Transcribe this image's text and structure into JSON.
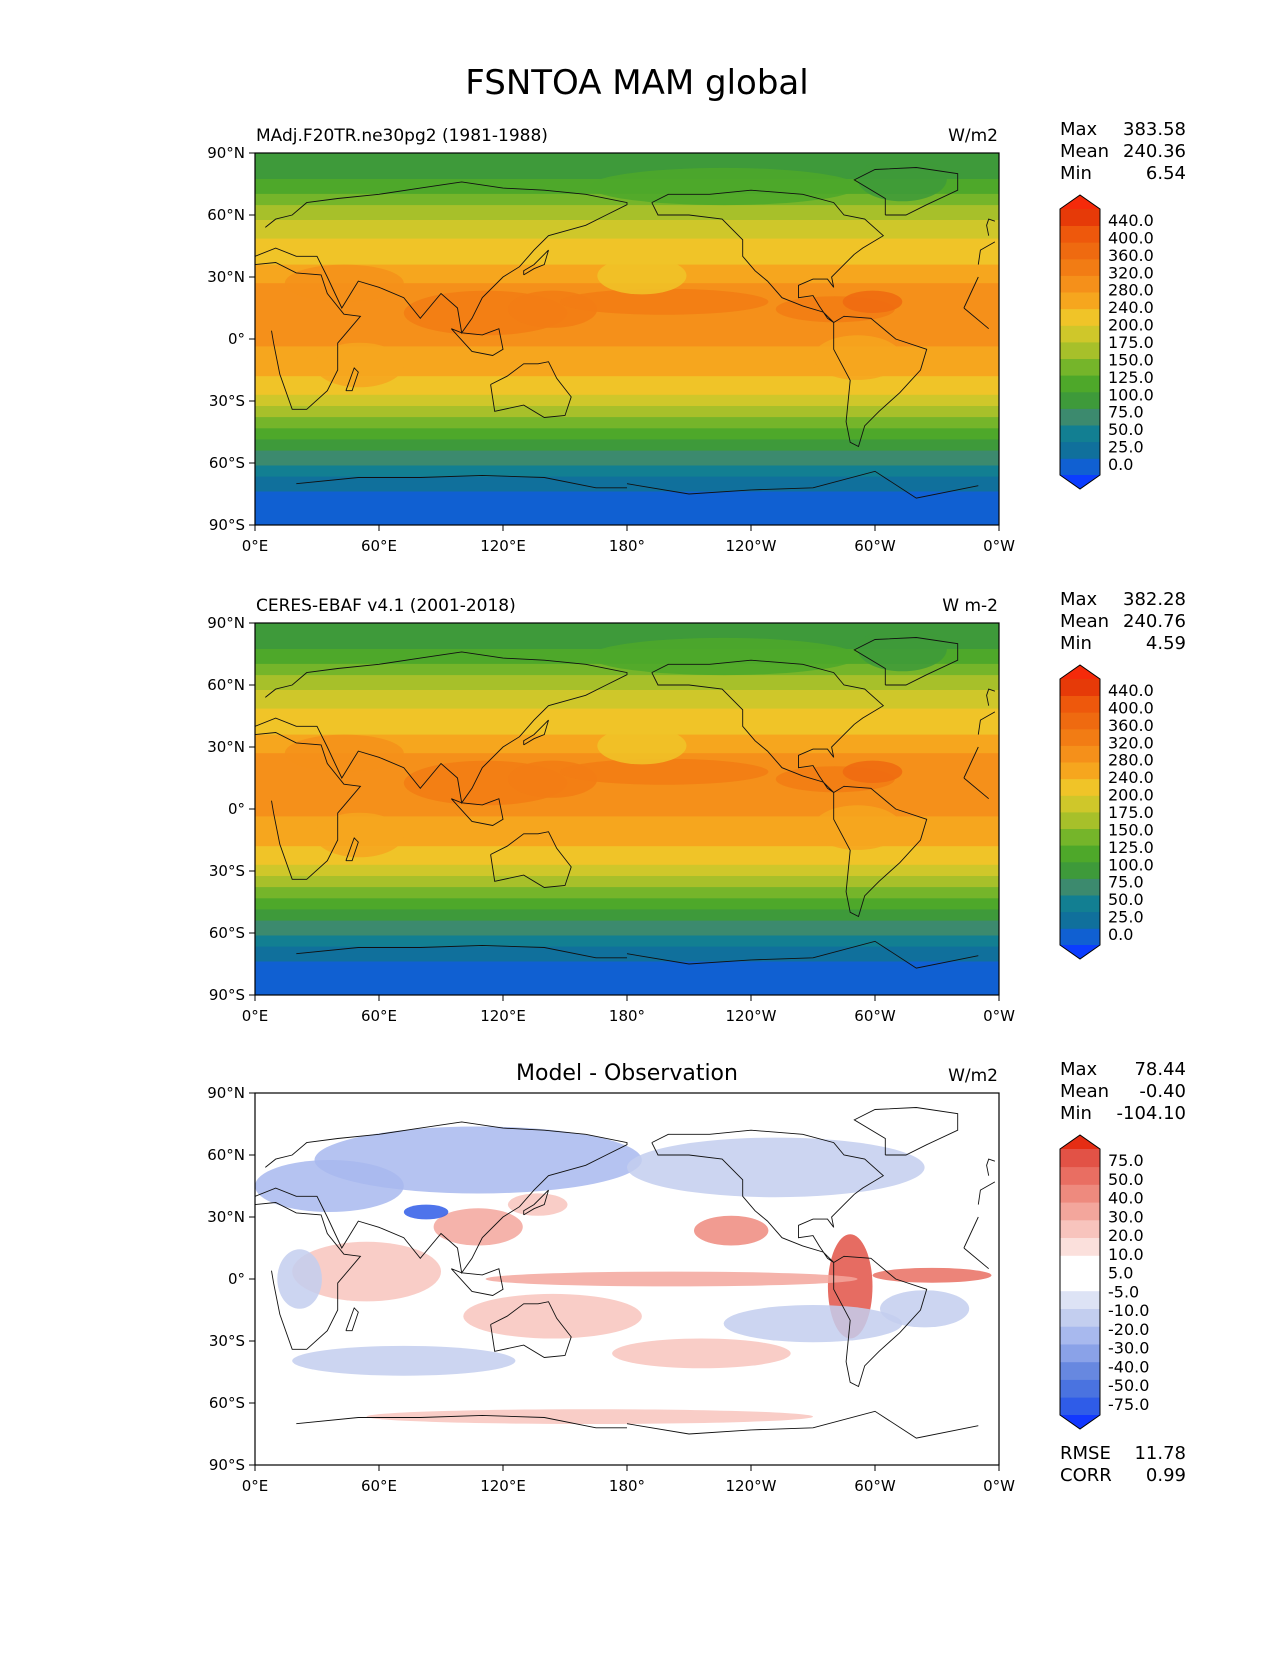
{
  "title": "FSNTOA MAM global",
  "x_ticks": [
    "0°E",
    "60°E",
    "120°E",
    "180°",
    "120°W",
    "60°W",
    "0°W"
  ],
  "y_ticks": [
    "90°N",
    "60°N",
    "30°N",
    "0°",
    "30°S",
    "60°S",
    "90°S"
  ],
  "colors": {
    "abs_levels": [
      "#0b3dff",
      "#1060d2",
      "#10709c",
      "#127f92",
      "#3c8a6e",
      "#3e9a3a",
      "#4ea82a",
      "#75b52a",
      "#a7c02a",
      "#cfc72a",
      "#f0c428",
      "#f6a61e",
      "#f5901a",
      "#f27c14",
      "#ef6a10",
      "#ee580c",
      "#e63a08",
      "#f52a0a"
    ],
    "diff_levels": [
      "#1238ff",
      "#2f5ce8",
      "#4a73e0",
      "#6788e0",
      "#8aa2e8",
      "#a8b9ee",
      "#c3ceef",
      "#dde3f5",
      "#ffffff",
      "#ffffff",
      "#fbe0dc",
      "#f8c4bd",
      "#f3a69c",
      "#ee8a7e",
      "#e96e62",
      "#e25246",
      "#e52d14"
    ]
  },
  "panels": [
    {
      "id": "model",
      "left_title": "MAdj.F20TR.ne30pg2 (1981-1988)",
      "center_title": "",
      "units": "W/m2",
      "stats": [
        {
          "label": "Max",
          "value": "383.58"
        },
        {
          "label": "Mean",
          "value": "240.36"
        },
        {
          "label": "Min",
          "value": "6.54"
        }
      ],
      "colorbar_labels": [
        "440.0",
        "400.0",
        "360.0",
        "320.0",
        "280.0",
        "240.0",
        "200.0",
        "175.0",
        "150.0",
        "125.0",
        "100.0",
        "75.0",
        "50.0",
        "25.0",
        "0.0"
      ],
      "extra_stats": []
    },
    {
      "id": "obs",
      "left_title": "CERES-EBAF v4.1 (2001-2018)",
      "center_title": "",
      "units": "W m-2",
      "stats": [
        {
          "label": "Max",
          "value": "382.28"
        },
        {
          "label": "Mean",
          "value": "240.76"
        },
        {
          "label": "Min",
          "value": "4.59"
        }
      ],
      "colorbar_labels": [
        "440.0",
        "400.0",
        "360.0",
        "320.0",
        "280.0",
        "240.0",
        "200.0",
        "175.0",
        "150.0",
        "125.0",
        "100.0",
        "75.0",
        "50.0",
        "25.0",
        "0.0"
      ],
      "extra_stats": []
    },
    {
      "id": "diff",
      "left_title": "",
      "center_title": "Model - Observation",
      "units": "W/m2",
      "stats": [
        {
          "label": "Max",
          "value": "78.44"
        },
        {
          "label": "Mean",
          "value": "-0.40"
        },
        {
          "label": "Min",
          "value": "-104.10"
        }
      ],
      "colorbar_labels": [
        "75.0",
        "50.0",
        "40.0",
        "30.0",
        "20.0",
        "10.0",
        "5.0",
        "-5.0",
        "-10.0",
        "-20.0",
        "-30.0",
        "-40.0",
        "-50.0",
        "-75.0"
      ],
      "extra_stats": [
        {
          "label": "RMSE",
          "value": "11.78"
        },
        {
          "label": "CORR",
          "value": "0.99"
        }
      ]
    }
  ]
}
